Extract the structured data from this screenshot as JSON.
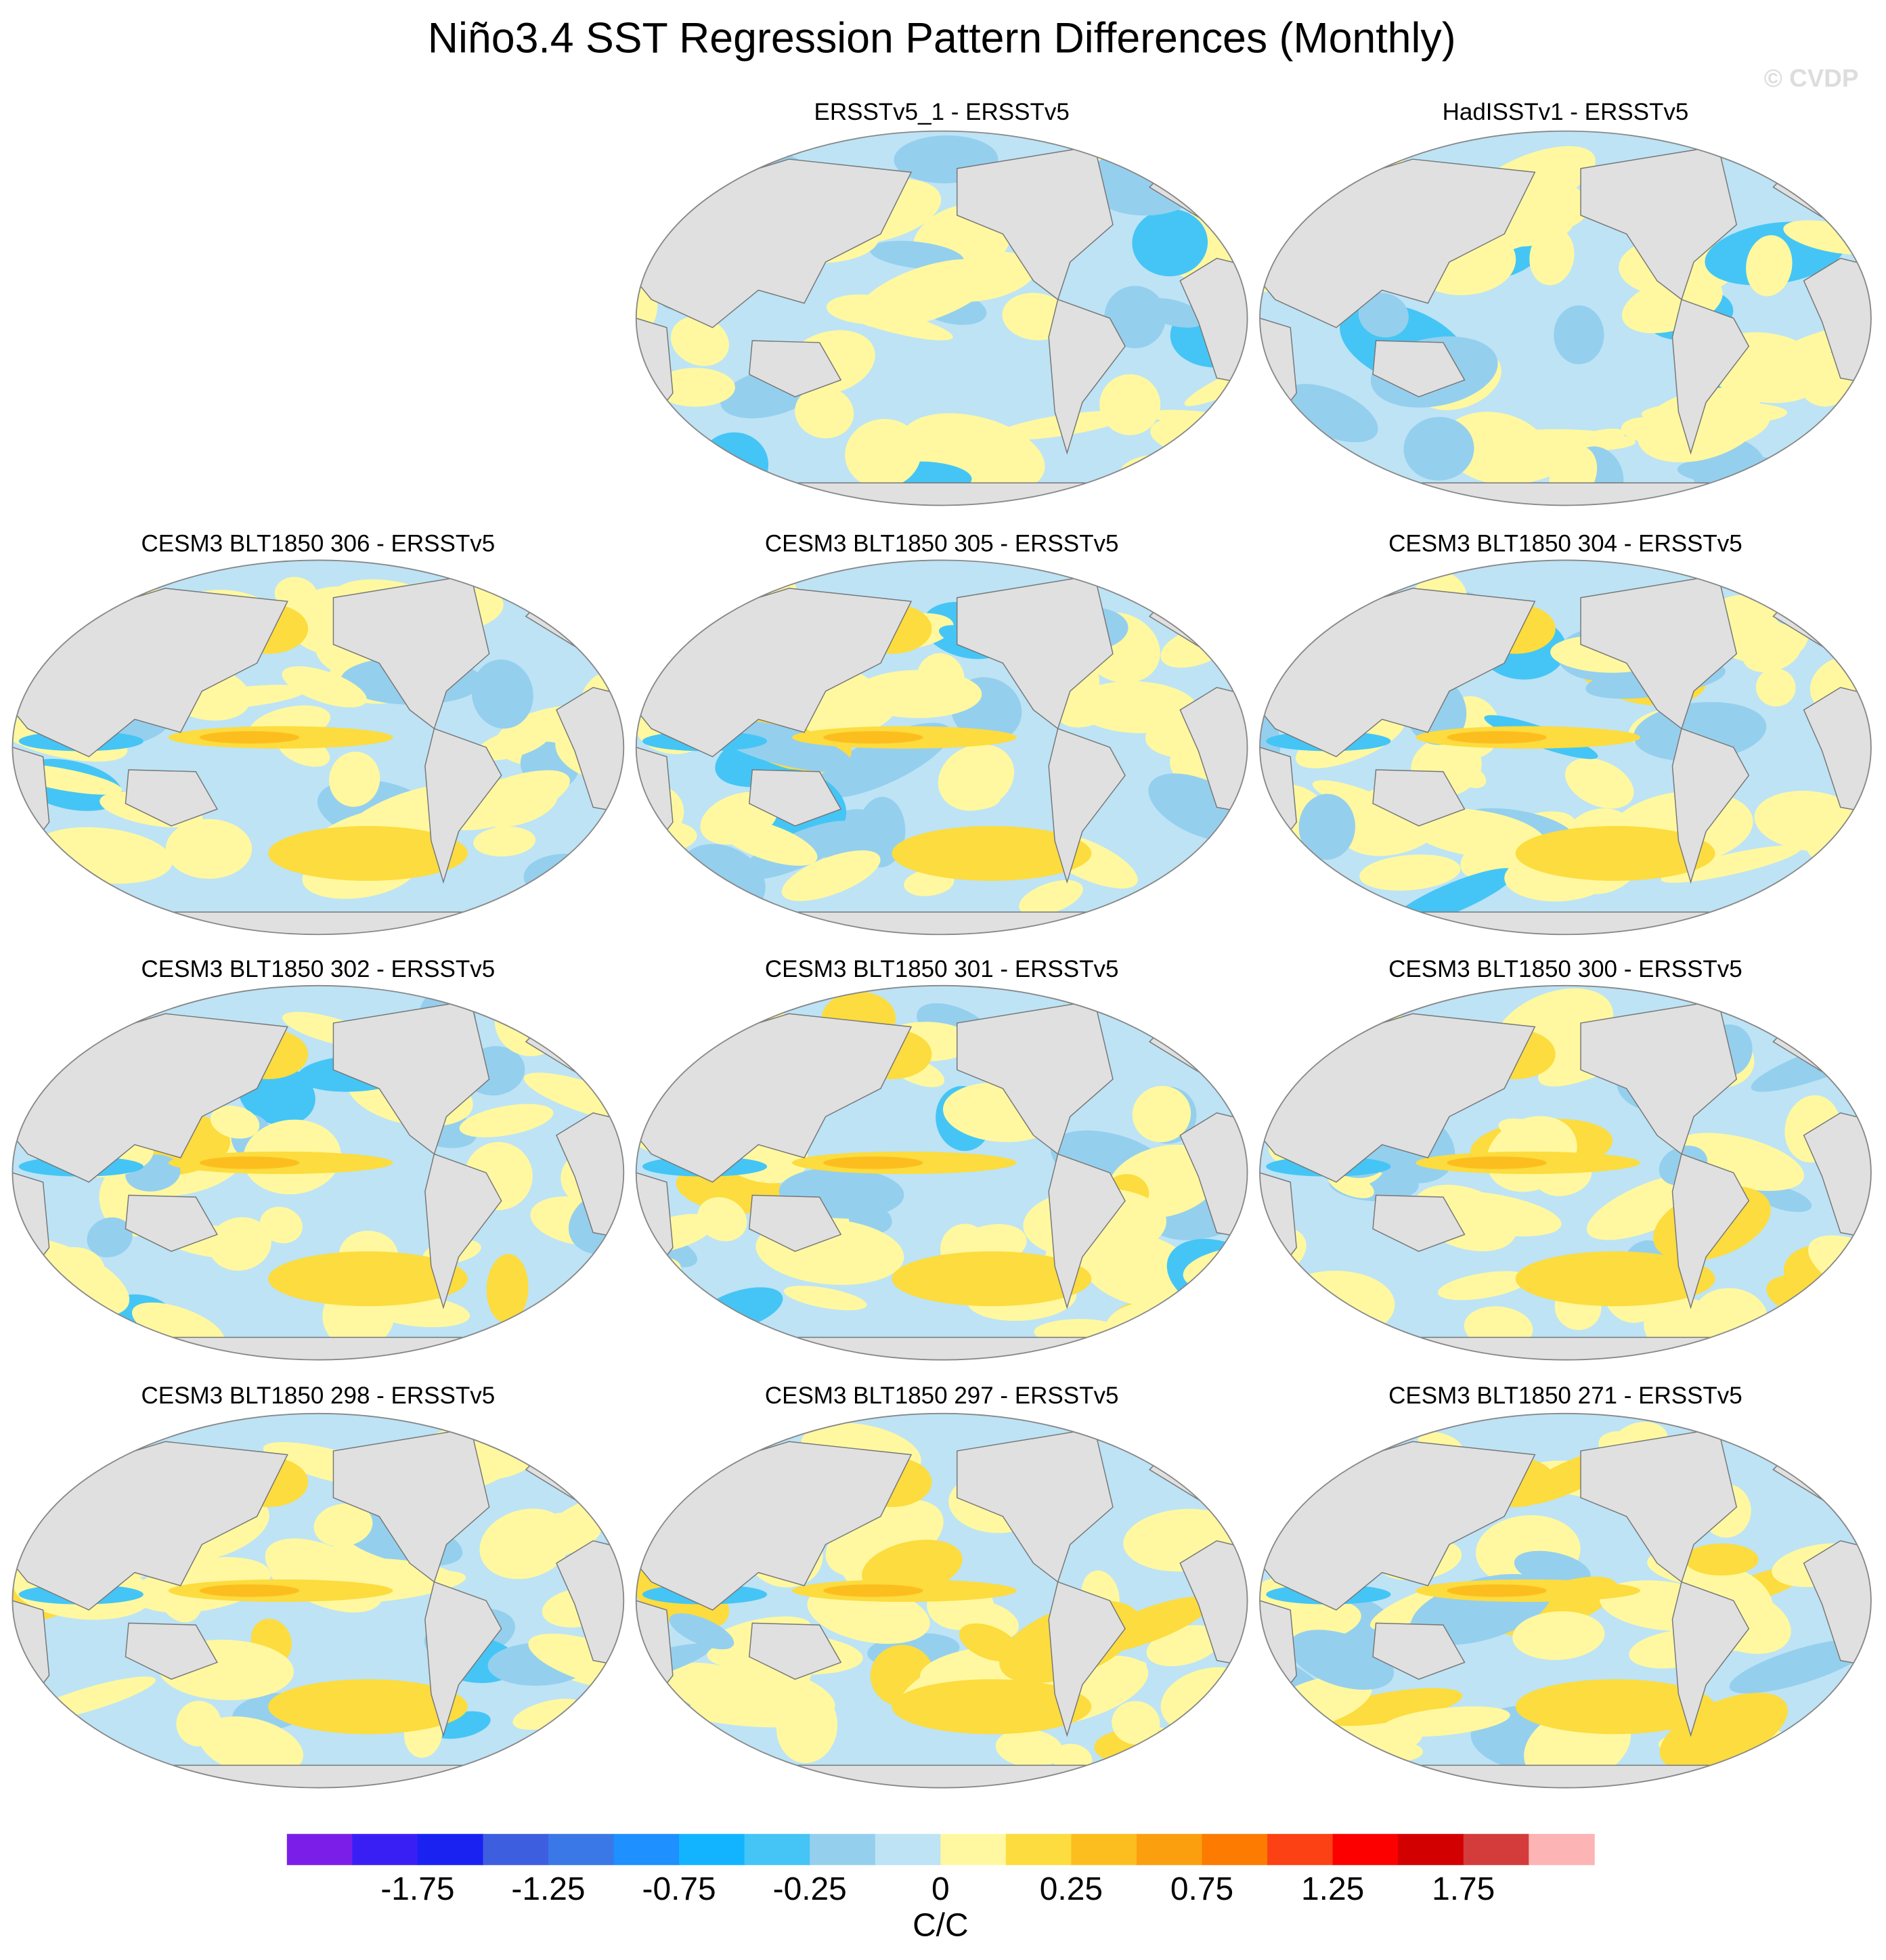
{
  "title": "Niño3.4 SST Regression Pattern Differences (Monthly)",
  "watermark": "© CVDP",
  "panels": [
    "ERSSTv5_1 - ERSSTv5",
    "HadISSTv1 - ERSSTv5",
    "CESM3 BLT1850 306 - ERSSTv5",
    "CESM3 BLT1850 305 - ERSSTv5",
    "CESM3 BLT1850 304 - ERSSTv5",
    "CESM3 BLT1850 302 - ERSSTv5",
    "CESM3 BLT1850 301 - ERSSTv5",
    "CESM3 BLT1850 300 - ERSSTv5",
    "CESM3 BLT1850 298 - ERSSTv5",
    "CESM3 BLT1850 297 - ERSSTv5",
    "CESM3 BLT1850 271 - ERSSTv5"
  ],
  "colorbar": {
    "colors": [
      "#7b1fe8",
      "#3a1ff5",
      "#1a22f2",
      "#3e5ee0",
      "#3a78e8",
      "#1e90ff",
      "#12b4ff",
      "#45c5f5",
      "#95cfee",
      "#bde3f5",
      "#fff8a0",
      "#fcdc3e",
      "#fcbe1e",
      "#fc9f0e",
      "#fc7b00",
      "#fc4114",
      "#fc0000",
      "#d20000",
      "#d43c3c",
      "#fcb4b4"
    ],
    "levels": [
      -2,
      -1.75,
      -1.5,
      -1.25,
      -1,
      -0.75,
      -0.5,
      -0.25,
      -0.1,
      0,
      0.1,
      0.25,
      0.5,
      0.75,
      1,
      1.25,
      1.5,
      1.75,
      2
    ],
    "ticks": [
      -1.75,
      -1.25,
      -0.75,
      -0.25,
      0,
      0.25,
      0.75,
      1.25,
      1.75
    ],
    "label": "C/C"
  }
}
